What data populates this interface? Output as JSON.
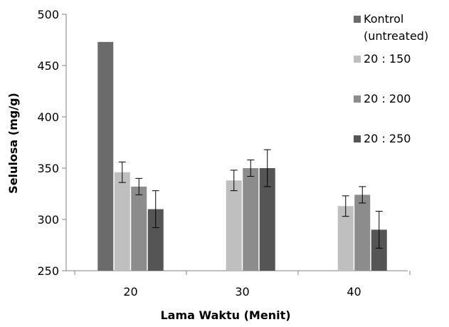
{
  "chart_data": {
    "type": "bar",
    "title": "",
    "xlabel": "Lama Waktu (Menit)",
    "ylabel": "Selulosa (mg/g)",
    "ylim": [
      250,
      500
    ],
    "yticks": [
      250,
      300,
      350,
      400,
      450,
      500
    ],
    "categories": [
      "20",
      "30",
      "40"
    ],
    "legend_position": "right",
    "grid": false,
    "series": [
      {
        "name": "Kontrol (untreated)",
        "name_lines": [
          "Kontrol",
          "(untreated)"
        ],
        "color": "#6b6b6b",
        "values": [
          473,
          null,
          null
        ],
        "errors": [
          null,
          null,
          null
        ]
      },
      {
        "name": "20 : 150",
        "name_lines": [
          "20 : 150"
        ],
        "color": "#bfbfbf",
        "values": [
          346,
          338,
          313
        ],
        "errors": [
          10,
          10,
          10
        ]
      },
      {
        "name": "20 : 200",
        "name_lines": [
          "20 : 200"
        ],
        "color": "#8c8c8c",
        "values": [
          332,
          350,
          324
        ],
        "errors": [
          8,
          8,
          8
        ]
      },
      {
        "name": "20 : 250",
        "name_lines": [
          "20 : 250"
        ],
        "color": "#555555",
        "values": [
          310,
          350,
          290
        ],
        "errors": [
          18,
          18,
          18
        ]
      }
    ]
  }
}
